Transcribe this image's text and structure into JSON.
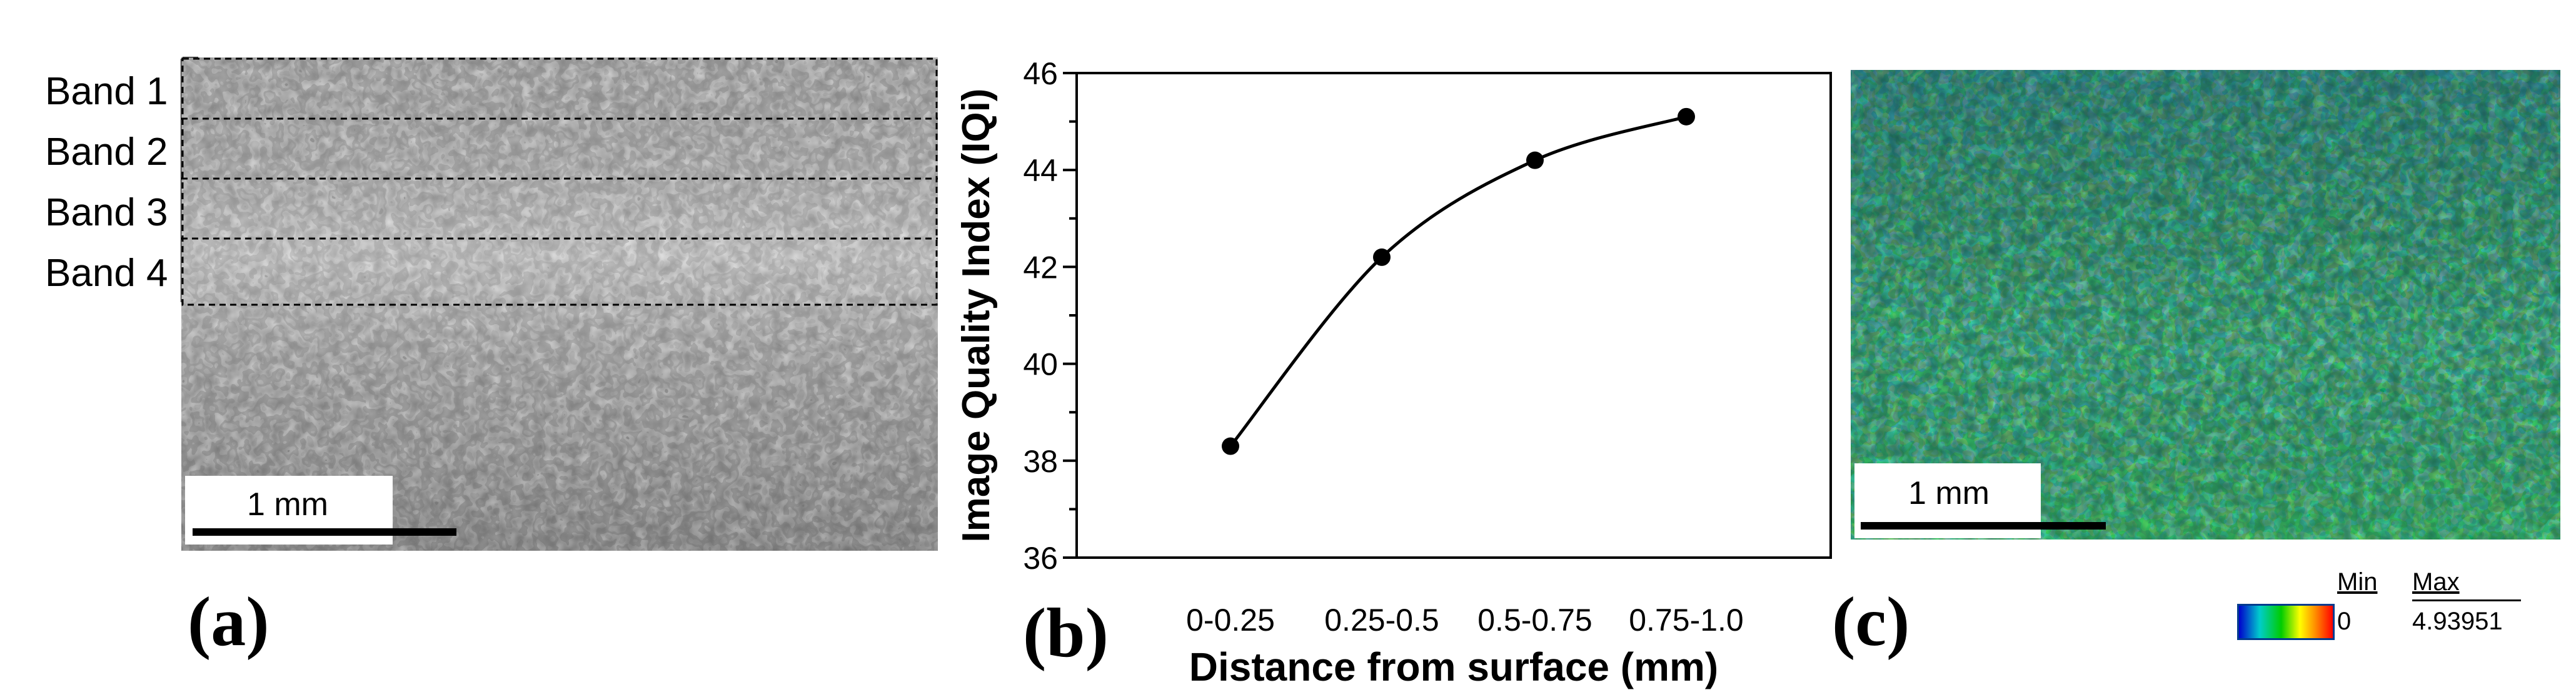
{
  "panel_a": {
    "letter": "(a)",
    "bands": [
      "Band 1",
      "Band 2",
      "Band 3",
      "Band 4"
    ],
    "scale_bar": "1 mm",
    "image": "grayscale-grain-micrograph"
  },
  "panel_b": {
    "letter": "(b)"
  },
  "panel_c": {
    "letter": "(c)",
    "scale_bar": "1 mm",
    "image": "green-blue-grain-orientation-map",
    "legend": {
      "min_label": "Min",
      "max_label": "Max",
      "min_value": "0",
      "max_value": "4.93951"
    }
  },
  "chart_data": {
    "type": "line",
    "categories": [
      "0-0.25",
      "0.25-0.5",
      "0.5-0.75",
      "0.75-1.0"
    ],
    "series": [
      {
        "values": [
          38.3,
          42.2,
          44.2,
          45.1
        ]
      }
    ],
    "xlabel": "Distance from surface (mm)",
    "ylabel": "Image Quality Index (IQi)",
    "ylim": [
      36,
      46
    ],
    "yticks": [
      36,
      38,
      40,
      42,
      44,
      46
    ],
    "grid": false,
    "smooth": true
  }
}
